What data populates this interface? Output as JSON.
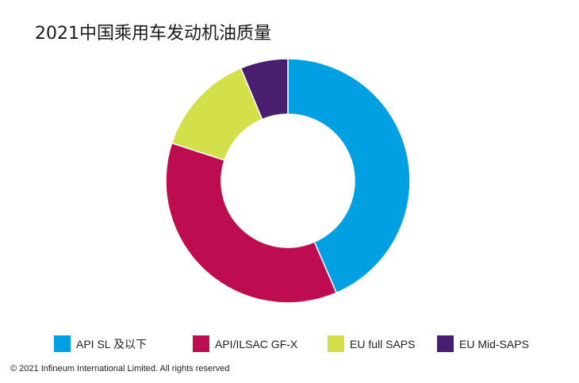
{
  "chart_data": {
    "type": "pie",
    "title": "2021中国乘用车发动机油质量",
    "categories": [
      "API SL 及以下",
      "API/ILSAC GF-X",
      "EU full SAPS",
      "EU Mid-SAPS"
    ],
    "values": [
      43.5,
      36.5,
      13.7,
      6.3
    ],
    "colors": [
      "#00a0e3",
      "#bd0d50",
      "#d3e04a",
      "#4a1e6e"
    ],
    "donut": true,
    "legend_position": "bottom"
  },
  "footer": {
    "copyright": "© 2021 Infineum International Limited. All rights reserved"
  }
}
